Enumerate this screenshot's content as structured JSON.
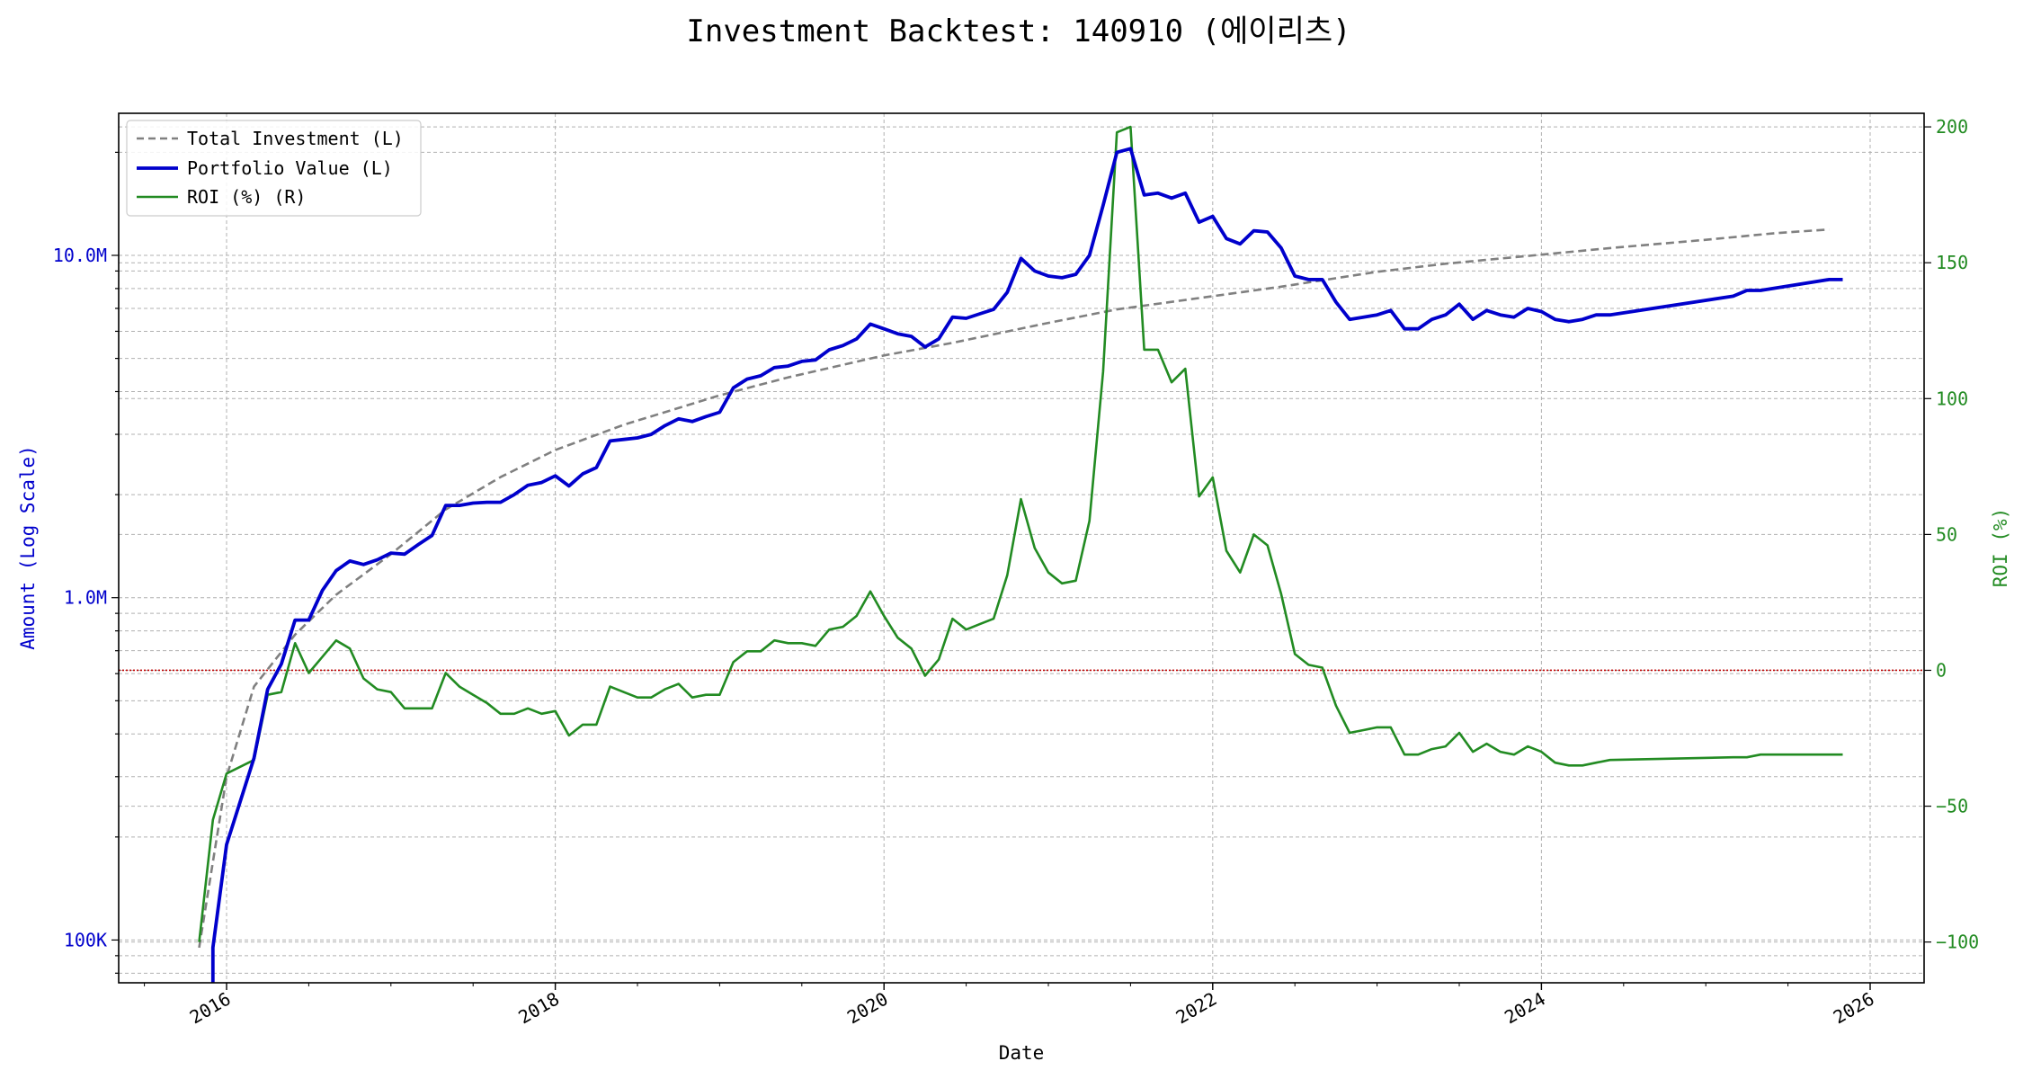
{
  "chart_data": {
    "type": "line",
    "title": "Investment Backtest: 140910 (에이리츠)",
    "xlabel": "Date",
    "ylabel_left": "Amount (Log Scale)",
    "ylabel_right": "ROI (%)",
    "left_scale": "log",
    "left_ylim": [
      75000,
      26000000
    ],
    "right_ylim": [
      -115,
      205
    ],
    "x_ticks": [
      "2016",
      "2018",
      "2020",
      "2022",
      "2024",
      "2026"
    ],
    "left_ticks": [
      {
        "value": 100000,
        "label": "100K"
      },
      {
        "value": 1000000,
        "label": "1.0M"
      },
      {
        "value": 10000000,
        "label": "10.0M"
      }
    ],
    "right_ticks": [
      {
        "value": -100,
        "label": "−100"
      },
      {
        "value": -50,
        "label": "−50"
      },
      {
        "value": 0,
        "label": "0"
      },
      {
        "value": 50,
        "label": "50"
      },
      {
        "value": 100,
        "label": "100"
      },
      {
        "value": 150,
        "label": "150"
      },
      {
        "value": 200,
        "label": "200"
      }
    ],
    "grid": true,
    "legend_position": "top-left",
    "reference_line": {
      "axis": "right",
      "value": 0,
      "color": "#c00000",
      "style": "dotted"
    },
    "colors": {
      "left_axis": "#0000cc",
      "right_axis": "#228b22"
    },
    "series": [
      {
        "name": "Total Investment (L)",
        "axis": "left",
        "color": "#808080",
        "style": "dashed",
        "x": [
          "2015-11",
          "2016-01",
          "2016-03",
          "2016-06",
          "2016-09",
          "2017-01",
          "2017-05",
          "2017-09",
          "2018-01",
          "2018-06",
          "2019-01",
          "2019-06",
          "2020-01",
          "2020-06",
          "2021-01",
          "2021-06",
          "2022-01",
          "2022-06",
          "2023-01",
          "2023-06",
          "2024-01",
          "2024-06",
          "2025-01",
          "2025-06",
          "2025-10"
        ],
        "values": [
          95000,
          300000,
          550000,
          780000,
          1020000,
          1340000,
          1810000,
          2250000,
          2700000,
          3200000,
          3900000,
          4400000,
          5100000,
          5550000,
          6350000,
          6950000,
          7600000,
          8100000,
          8950000,
          9450000,
          10050000,
          10500000,
          11100000,
          11600000,
          11900000
        ]
      },
      {
        "name": "Portfolio Value (L)",
        "axis": "left",
        "color": "#0000cc",
        "style": "solid",
        "x": [
          "2015-12",
          "2015-12",
          "2016-01",
          "2016-03",
          "2016-04",
          "2016-05",
          "2016-06",
          "2016-07",
          "2016-08",
          "2016-09",
          "2016-10",
          "2016-11",
          "2016-12",
          "2017-01",
          "2017-02",
          "2017-03",
          "2017-04",
          "2017-05",
          "2017-06",
          "2017-07",
          "2017-08",
          "2017-09",
          "2017-10",
          "2017-11",
          "2017-12",
          "2018-01",
          "2018-02",
          "2018-03",
          "2018-04",
          "2018-05",
          "2018-06",
          "2018-07",
          "2018-08",
          "2018-09",
          "2018-10",
          "2018-11",
          "2018-12",
          "2019-01",
          "2019-02",
          "2019-03",
          "2019-04",
          "2019-05",
          "2019-06",
          "2019-07",
          "2019-08",
          "2019-09",
          "2019-10",
          "2019-11",
          "2019-12",
          "2020-01",
          "2020-02",
          "2020-03",
          "2020-04",
          "2020-05",
          "2020-06",
          "2020-07",
          "2020-08",
          "2020-09",
          "2020-10",
          "2020-11",
          "2020-12",
          "2021-01",
          "2021-02",
          "2021-03",
          "2021-04",
          "2021-05",
          "2021-06",
          "2021-07",
          "2021-08",
          "2021-09",
          "2021-10",
          "2021-11",
          "2021-12",
          "2022-01",
          "2022-02",
          "2022-03",
          "2022-04",
          "2022-05",
          "2022-06",
          "2022-07",
          "2022-08",
          "2022-09",
          "2022-10",
          "2022-11",
          "2022-12",
          "2023-01",
          "2023-02",
          "2023-03",
          "2023-04",
          "2023-05",
          "2023-06",
          "2023-07",
          "2023-08",
          "2023-09",
          "2023-10",
          "2023-11",
          "2023-12",
          "2024-01",
          "2024-02",
          "2024-03",
          "2024-04",
          "2024-05",
          "2024-06",
          "2025-03",
          "2025-04",
          "2025-05",
          "2025-10",
          "2025-11"
        ],
        "values": [
          55000,
          95000,
          190000,
          340000,
          540000,
          640000,
          860000,
          860000,
          1050000,
          1200000,
          1280000,
          1250000,
          1290000,
          1350000,
          1340000,
          1430000,
          1520000,
          1860000,
          1860000,
          1890000,
          1900000,
          1900000,
          2000000,
          2130000,
          2170000,
          2270000,
          2120000,
          2300000,
          2400000,
          2870000,
          2900000,
          2930000,
          3000000,
          3180000,
          3330000,
          3270000,
          3380000,
          3480000,
          4100000,
          4350000,
          4450000,
          4700000,
          4750000,
          4900000,
          4950000,
          5300000,
          5450000,
          5700000,
          6300000,
          6100000,
          5900000,
          5800000,
          5400000,
          5700000,
          6600000,
          6550000,
          6750000,
          6950000,
          7800000,
          9800000,
          9000000,
          8700000,
          8600000,
          8800000,
          10000000,
          14000000,
          20000000,
          20500000,
          15000000,
          15200000,
          14700000,
          15200000,
          12500000,
          13000000,
          11200000,
          10800000,
          11800000,
          11700000,
          10500000,
          8700000,
          8500000,
          8500000,
          7300000,
          6500000,
          6600000,
          6700000,
          6900000,
          6100000,
          6100000,
          6500000,
          6700000,
          7200000,
          6500000,
          6900000,
          6700000,
          6600000,
          7000000,
          6850000,
          6500000,
          6400000,
          6500000,
          6700000,
          6700000,
          7600000,
          7900000,
          7900000,
          8500000,
          8500000
        ]
      },
      {
        "name": "ROI (%) (R)",
        "axis": "right",
        "color": "#228b22",
        "style": "solid",
        "x": [
          "2015-11",
          "2015-12",
          "2016-01",
          "2016-03",
          "2016-04",
          "2016-05",
          "2016-06",
          "2016-07",
          "2016-08",
          "2016-09",
          "2016-10",
          "2016-11",
          "2016-12",
          "2017-01",
          "2017-02",
          "2017-03",
          "2017-04",
          "2017-05",
          "2017-06",
          "2017-07",
          "2017-08",
          "2017-09",
          "2017-10",
          "2017-11",
          "2017-12",
          "2018-01",
          "2018-02",
          "2018-03",
          "2018-04",
          "2018-05",
          "2018-06",
          "2018-07",
          "2018-08",
          "2018-09",
          "2018-10",
          "2018-11",
          "2018-12",
          "2019-01",
          "2019-02",
          "2019-03",
          "2019-04",
          "2019-05",
          "2019-06",
          "2019-07",
          "2019-08",
          "2019-09",
          "2019-10",
          "2019-11",
          "2019-12",
          "2020-01",
          "2020-02",
          "2020-03",
          "2020-04",
          "2020-05",
          "2020-06",
          "2020-07",
          "2020-08",
          "2020-09",
          "2020-10",
          "2020-11",
          "2020-12",
          "2021-01",
          "2021-02",
          "2021-03",
          "2021-04",
          "2021-05",
          "2021-06",
          "2021-07",
          "2021-08",
          "2021-09",
          "2021-10",
          "2021-11",
          "2021-12",
          "2022-01",
          "2022-02",
          "2022-03",
          "2022-04",
          "2022-05",
          "2022-06",
          "2022-07",
          "2022-08",
          "2022-09",
          "2022-10",
          "2022-11",
          "2022-12",
          "2023-01",
          "2023-02",
          "2023-03",
          "2023-04",
          "2023-05",
          "2023-06",
          "2023-07",
          "2023-08",
          "2023-09",
          "2023-10",
          "2023-11",
          "2023-12",
          "2024-01",
          "2024-02",
          "2024-03",
          "2024-04",
          "2024-05",
          "2024-06",
          "2025-03",
          "2025-04",
          "2025-05",
          "2025-10",
          "2025-11"
        ],
        "values": [
          -100,
          -55,
          -38,
          -33,
          -9,
          -8,
          10,
          -1,
          5,
          11,
          8,
          -3,
          -7,
          -8,
          -14,
          -14,
          -14,
          -1,
          -6,
          -9,
          -12,
          -16,
          -16,
          -14,
          -16,
          -15,
          -24,
          -20,
          -20,
          -6,
          -8,
          -10,
          -10,
          -7,
          -5,
          -10,
          -9,
          -9,
          3,
          7,
          7,
          11,
          10,
          10,
          9,
          15,
          16,
          20,
          29,
          20,
          12,
          8,
          -2,
          4,
          19,
          15,
          17,
          19,
          35,
          63,
          45,
          36,
          32,
          33,
          55,
          110,
          198,
          200,
          118,
          118,
          106,
          111,
          64,
          71,
          44,
          36,
          50,
          46,
          28,
          6,
          2,
          1,
          -13,
          -23,
          -22,
          -21,
          -21,
          -31,
          -31,
          -29,
          -28,
          -23,
          -30,
          -27,
          -30,
          -31,
          -28,
          -30,
          -34,
          -35,
          -35,
          -34,
          -33,
          -32,
          -32,
          -31,
          -31,
          -31
        ]
      }
    ]
  }
}
